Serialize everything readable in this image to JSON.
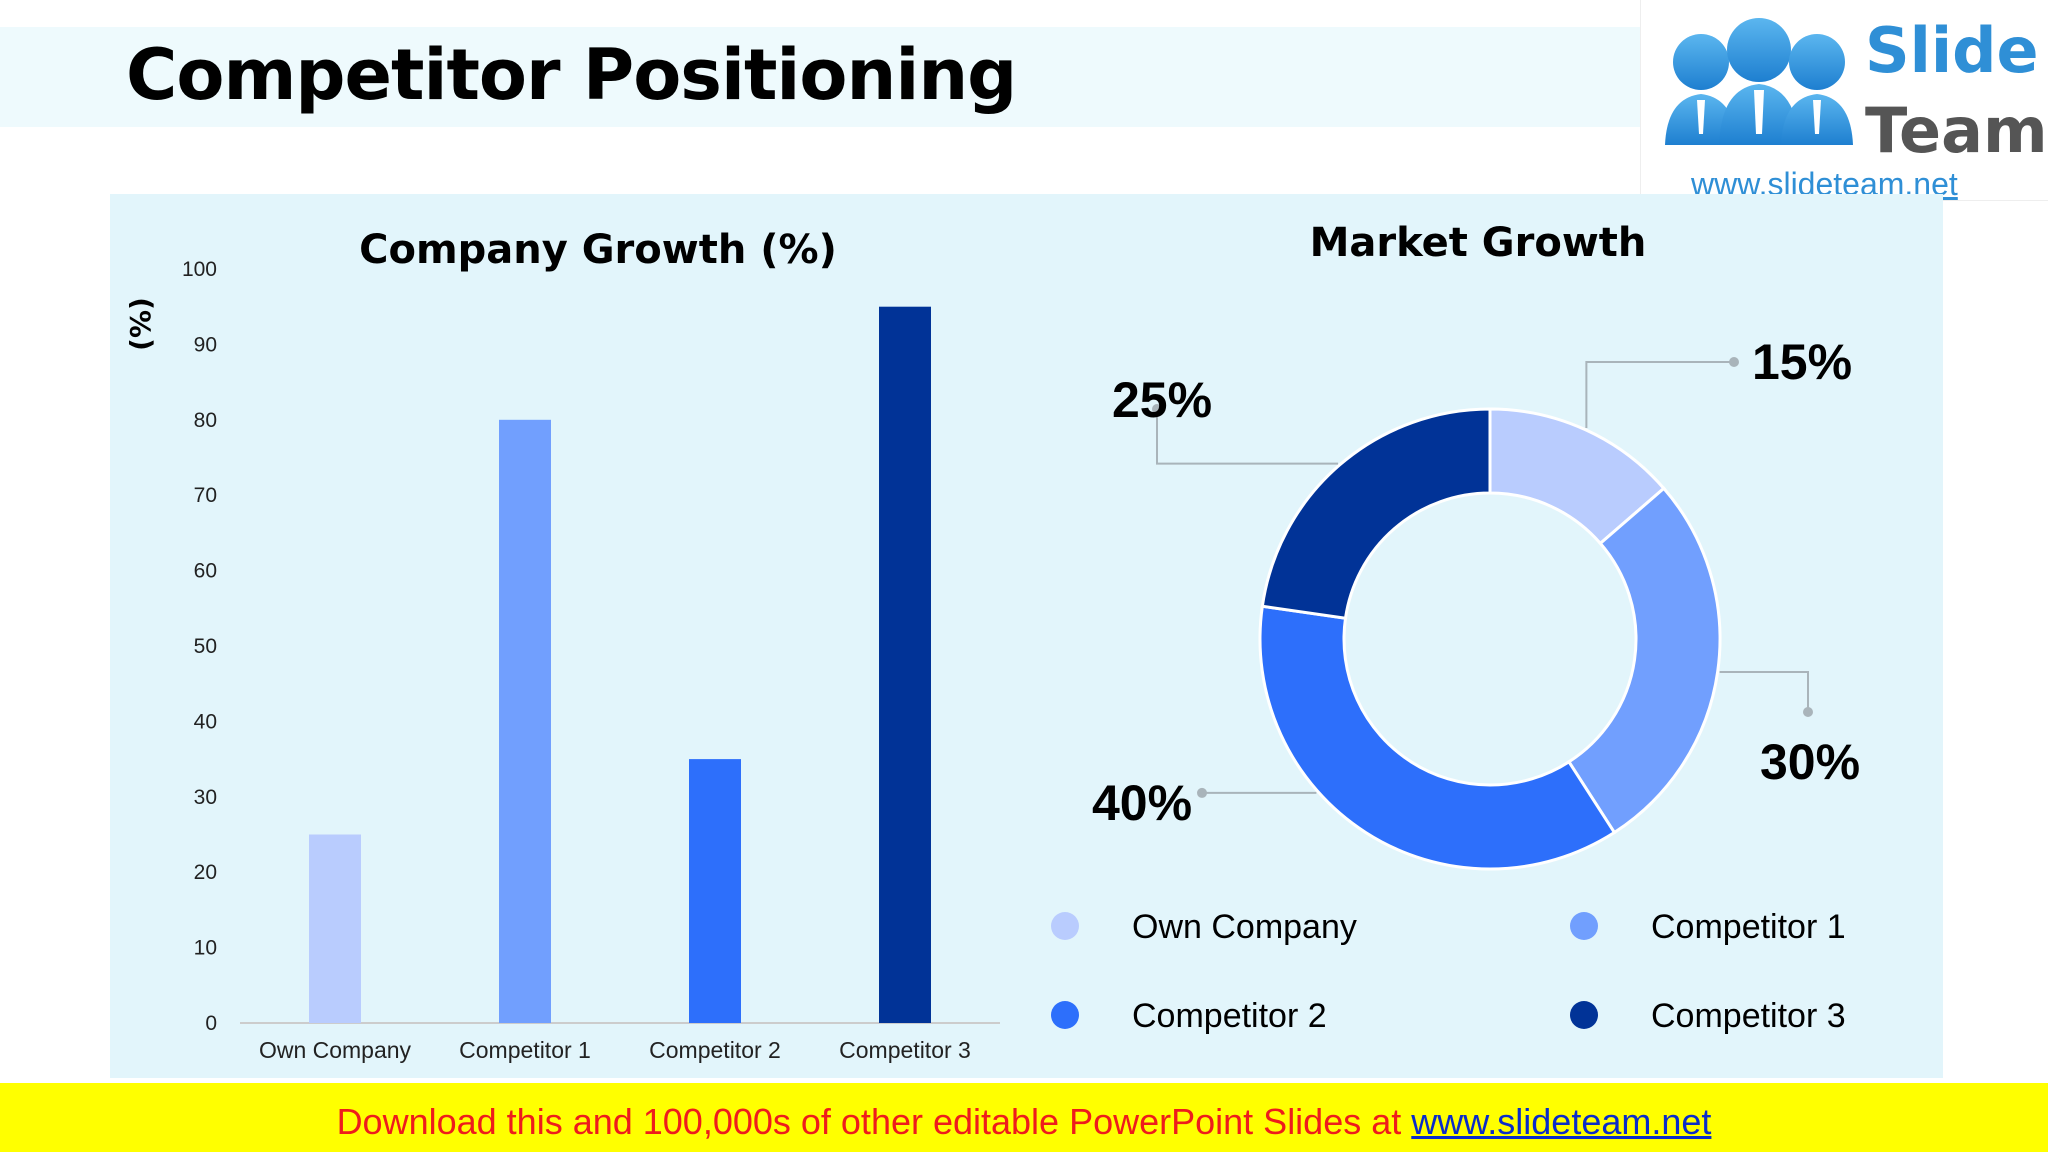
{
  "slide": {
    "title": "Competitor Positioning"
  },
  "logo": {
    "word1": "Slide",
    "word2": "Team",
    "url": "www.slideteam.net"
  },
  "footer": {
    "text": "Download this and 100,000s of other editable PowerPoint Slides at",
    "link": "www.slideteam.net"
  },
  "colors": {
    "own_company": "#b9ccfe",
    "competitor_1": "#719ffe",
    "competitor_2": "#2d6ffb",
    "competitor_3": "#013397",
    "panel_bg": "#e2f5fb",
    "footer_bg": "#ffff00",
    "footer_text": "#ee1c1c"
  },
  "chart_data": [
    {
      "type": "bar",
      "title": "Company Growth (%)",
      "ylabel": "(%)",
      "xlabel": "",
      "categories": [
        "Own Company",
        "Competitor 1",
        "Competitor 2",
        "Competitor 3"
      ],
      "values": [
        25,
        80,
        35,
        95
      ],
      "ylim": [
        0,
        100
      ],
      "yticks": [
        0,
        10,
        20,
        30,
        40,
        50,
        60,
        70,
        80,
        90,
        100
      ],
      "colors": [
        "#b9ccfe",
        "#719ffe",
        "#2d6ffb",
        "#013397"
      ],
      "grid": false
    },
    {
      "type": "pie",
      "donut": true,
      "title": "Market Growth",
      "categories": [
        "Own Company",
        "Competitor 1",
        "Competitor 2",
        "Competitor 3"
      ],
      "values": [
        15,
        30,
        40,
        25
      ],
      "labels": [
        "15%",
        "30%",
        "40%",
        "25%"
      ],
      "colors": [
        "#b9ccfe",
        "#719ffe",
        "#2d6ffb",
        "#013397"
      ],
      "legend": "bottom"
    }
  ]
}
